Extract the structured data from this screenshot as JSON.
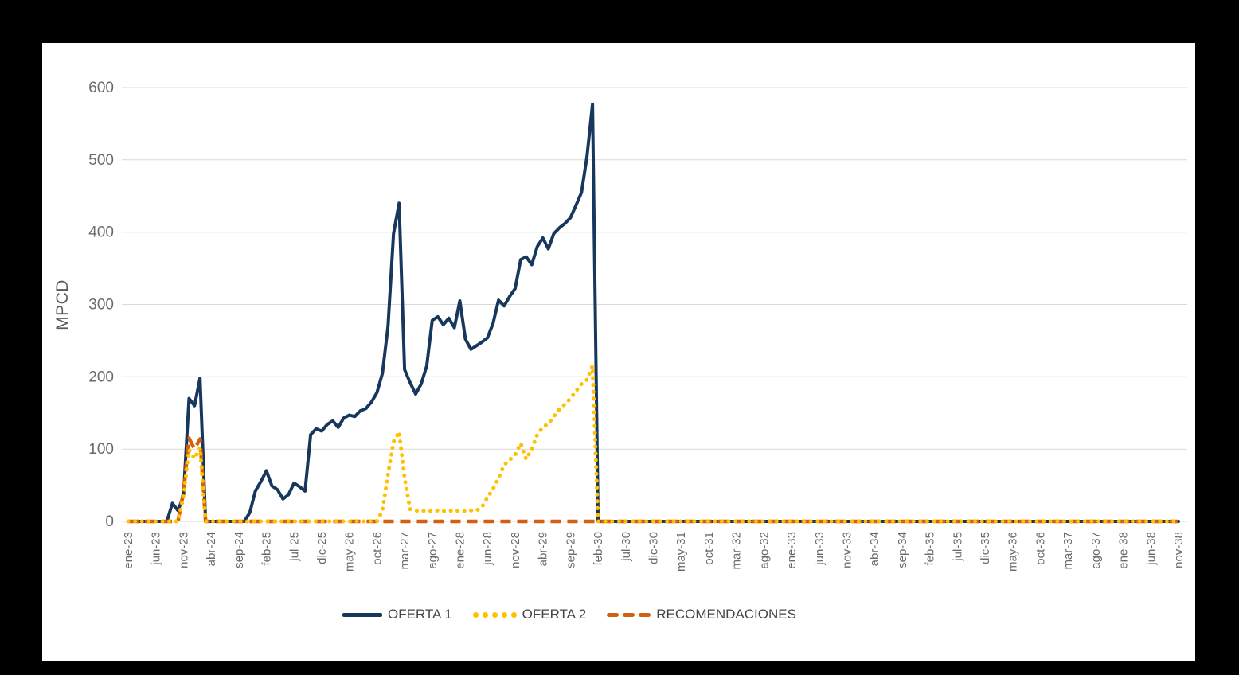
{
  "page": {
    "background_color": "#000000",
    "card_color": "#ffffff"
  },
  "chart_data": {
    "type": "line",
    "title": "",
    "xlabel": "",
    "ylabel": "MPCD",
    "ylim": [
      0,
      600
    ],
    "yticks": [
      0,
      100,
      200,
      300,
      400,
      500,
      600
    ],
    "grid": true,
    "grid_color": "#d9d9d9",
    "legend_position": "bottom",
    "x_unit": "month",
    "x_start": "ene-23",
    "x_end": "nov-38",
    "x_ticks_every_n_months": 5,
    "x_tick_labels": [
      "ene-23",
      "jun-23",
      "nov-23",
      "abr-24",
      "sep-24",
      "feb-25",
      "jul-25",
      "dic-25",
      "may-26",
      "oct-26",
      "mar-27",
      "ago-27",
      "ene-28",
      "jun-28",
      "nov-28",
      "abr-29",
      "sep-29",
      "feb-30",
      "jul-30",
      "dic-30",
      "may-31",
      "oct-31",
      "mar-32",
      "ago-32",
      "ene-33",
      "jun-33",
      "nov-33",
      "abr-34",
      "sep-34",
      "feb-35",
      "jul-35",
      "dic-35",
      "may-36",
      "oct-36",
      "mar-37",
      "ago-37",
      "ene-38",
      "jun-38",
      "nov-38"
    ],
    "series": [
      {
        "name": "OFERTA 1",
        "color": "#17375D",
        "style": "solid",
        "values": [
          0,
          0,
          0,
          0,
          0,
          0,
          0,
          0,
          25,
          15,
          35,
          170,
          160,
          198,
          0,
          0,
          0,
          0,
          0,
          0,
          0,
          0,
          12,
          42,
          55,
          70,
          49,
          44,
          31,
          37,
          53,
          48,
          42,
          120,
          128,
          125,
          134,
          139,
          130,
          143,
          147,
          145,
          153,
          156,
          165,
          178,
          205,
          270,
          398,
          440,
          210,
          192,
          176,
          190,
          215,
          278,
          283,
          272,
          281,
          268,
          305,
          252,
          238,
          243,
          248,
          254,
          274,
          306,
          298,
          311,
          322,
          362,
          366,
          355,
          380,
          392,
          377,
          398,
          406,
          412,
          420,
          437,
          455,
          505,
          577,
          0,
          0,
          0,
          0,
          0,
          0,
          0,
          0,
          0,
          0,
          0,
          0,
          0,
          0,
          0,
          0,
          0,
          0,
          0,
          0,
          0,
          0,
          0,
          0,
          0,
          0,
          0,
          0,
          0,
          0,
          0,
          0,
          0,
          0,
          0,
          0,
          0,
          0,
          0,
          0,
          0,
          0,
          0,
          0,
          0,
          0,
          0,
          0,
          0,
          0,
          0,
          0,
          0,
          0,
          0,
          0,
          0,
          0,
          0,
          0,
          0,
          0,
          0,
          0,
          0,
          0,
          0,
          0,
          0,
          0,
          0,
          0,
          0,
          0,
          0,
          0,
          0,
          0,
          0,
          0,
          0,
          0,
          0,
          0,
          0,
          0,
          0,
          0,
          0,
          0,
          0,
          0,
          0,
          0,
          0,
          0,
          0,
          0,
          0,
          0,
          0,
          0,
          0,
          0,
          0,
          0
        ]
      },
      {
        "name": "OFERTA 2",
        "color": "#FFC000",
        "style": "dotted",
        "values": [
          0,
          0,
          0,
          0,
          0,
          0,
          0,
          0,
          0,
          0,
          35,
          99,
          87,
          102,
          0,
          0,
          0,
          0,
          0,
          0,
          0,
          0,
          0,
          0,
          0,
          0,
          0,
          0,
          0,
          0,
          0,
          0,
          0,
          0,
          0,
          0,
          0,
          0,
          0,
          0,
          0,
          0,
          0,
          0,
          0,
          0,
          15,
          65,
          110,
          124,
          60,
          17,
          15,
          14,
          15,
          14,
          15,
          14,
          15,
          14,
          15,
          14,
          15,
          15,
          20,
          33,
          45,
          60,
          78,
          85,
          92,
          108,
          86,
          100,
          120,
          130,
          135,
          145,
          155,
          162,
          170,
          180,
          190,
          196,
          215,
          0,
          0,
          0,
          0,
          0,
          0,
          0,
          0,
          0,
          0,
          0,
          0,
          0,
          0,
          0,
          0,
          0,
          0,
          0,
          0,
          0,
          0,
          0,
          0,
          0,
          0,
          0,
          0,
          0,
          0,
          0,
          0,
          0,
          0,
          0,
          0,
          0,
          0,
          0,
          0,
          0,
          0,
          0,
          0,
          0,
          0,
          0,
          0,
          0,
          0,
          0,
          0,
          0,
          0,
          0,
          0,
          0,
          0,
          0,
          0,
          0,
          0,
          0,
          0,
          0,
          0,
          0,
          0,
          0,
          0,
          0,
          0,
          0,
          0,
          0,
          0,
          0,
          0,
          0,
          0,
          0,
          0,
          0,
          0,
          0,
          0,
          0,
          0,
          0,
          0,
          0,
          0,
          0,
          0,
          0,
          0,
          0,
          0,
          0,
          0,
          0,
          0,
          0,
          0,
          0,
          0
        ]
      },
      {
        "name": "RECOMENDACIONES",
        "color": "#D2600E",
        "style": "dashed",
        "values": [
          0,
          0,
          0,
          0,
          0,
          0,
          0,
          0,
          0,
          0,
          40,
          115,
          100,
          114,
          0,
          0,
          0,
          0,
          0,
          0,
          0,
          0,
          0,
          0,
          0,
          0,
          0,
          0,
          0,
          0,
          0,
          0,
          0,
          0,
          0,
          0,
          0,
          0,
          0,
          0,
          0,
          0,
          0,
          0,
          0,
          0,
          0,
          0,
          0,
          0,
          0,
          0,
          0,
          0,
          0,
          0,
          0,
          0,
          0,
          0,
          0,
          0,
          0,
          0,
          0,
          0,
          0,
          0,
          0,
          0,
          0,
          0,
          0,
          0,
          0,
          0,
          0,
          0,
          0,
          0,
          0,
          0,
          0,
          0,
          0,
          0,
          0,
          0,
          0,
          0,
          0,
          0,
          0,
          0,
          0,
          0,
          0,
          0,
          0,
          0,
          0,
          0,
          0,
          0,
          0,
          0,
          0,
          0,
          0,
          0,
          0,
          0,
          0,
          0,
          0,
          0,
          0,
          0,
          0,
          0,
          0,
          0,
          0,
          0,
          0,
          0,
          0,
          0,
          0,
          0,
          0,
          0,
          0,
          0,
          0,
          0,
          0,
          0,
          0,
          0,
          0,
          0,
          0,
          0,
          0,
          0,
          0,
          0,
          0,
          0,
          0,
          0,
          0,
          0,
          0,
          0,
          0,
          0,
          0,
          0,
          0,
          0,
          0,
          0,
          0,
          0,
          0,
          0,
          0,
          0,
          0,
          0,
          0,
          0,
          0,
          0,
          0,
          0,
          0,
          0,
          0,
          0,
          0,
          0,
          0,
          0,
          0,
          0,
          0,
          0,
          0
        ]
      }
    ]
  }
}
